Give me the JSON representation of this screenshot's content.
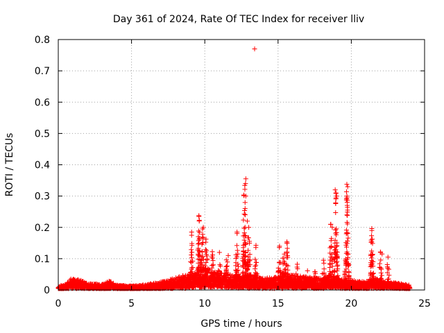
{
  "chart_data": {
    "type": "scatter",
    "title": "Day 361 of 2024, Rate Of TEC Index for receiver lliv",
    "xlabel": "GPS time / hours",
    "ylabel": "ROTI / TECUs",
    "xlim": [
      0,
      25
    ],
    "ylim": [
      0,
      0.8
    ],
    "xticks": [
      0,
      5,
      10,
      15,
      20,
      25
    ],
    "yticks": [
      0,
      0.1,
      0.2,
      0.3,
      0.4,
      0.5,
      0.6,
      0.7,
      0.8
    ],
    "xtick_labels": [
      "0",
      "5",
      "10",
      "15",
      "20",
      "25"
    ],
    "ytick_labels": [
      "0",
      "0.1",
      "0.2",
      "0.3",
      "0.4",
      "0.5",
      "0.6",
      "0.7",
      "0.8"
    ],
    "grid": true,
    "marker": "plus",
    "color": "#ff0000",
    "background": [
      [
        0.0,
        0.012
      ],
      [
        0.5,
        0.018
      ],
      [
        0.9,
        0.035
      ],
      [
        1.5,
        0.03
      ],
      [
        2.0,
        0.02
      ],
      [
        3.0,
        0.018
      ],
      [
        3.5,
        0.028
      ],
      [
        4.0,
        0.015
      ],
      [
        5.0,
        0.012
      ],
      [
        6.0,
        0.016
      ],
      [
        7.0,
        0.025
      ],
      [
        7.8,
        0.035
      ],
      [
        8.5,
        0.045
      ],
      [
        9.0,
        0.05
      ],
      [
        9.5,
        0.055
      ],
      [
        10.0,
        0.07
      ],
      [
        10.5,
        0.06
      ],
      [
        11.0,
        0.055
      ],
      [
        11.5,
        0.05
      ],
      [
        12.0,
        0.045
      ],
      [
        12.5,
        0.04
      ],
      [
        13.0,
        0.05
      ],
      [
        13.5,
        0.04
      ],
      [
        14.0,
        0.035
      ],
      [
        15.0,
        0.04
      ],
      [
        15.5,
        0.05
      ],
      [
        16.0,
        0.045
      ],
      [
        17.0,
        0.04
      ],
      [
        18.0,
        0.035
      ],
      [
        18.5,
        0.045
      ],
      [
        19.0,
        0.04
      ],
      [
        19.5,
        0.035
      ],
      [
        20.0,
        0.03
      ],
      [
        21.0,
        0.025
      ],
      [
        21.5,
        0.04
      ],
      [
        22.0,
        0.03
      ],
      [
        23.0,
        0.022
      ],
      [
        24.0,
        0.015
      ]
    ],
    "spikes": [
      {
        "x": 9.1,
        "peak": 0.18
      },
      {
        "x": 9.6,
        "peak": 0.23
      },
      {
        "x": 9.85,
        "peak": 0.2
      },
      {
        "x": 10.1,
        "peak": 0.16
      },
      {
        "x": 10.5,
        "peak": 0.13
      },
      {
        "x": 11.0,
        "peak": 0.12
      },
      {
        "x": 11.5,
        "peak": 0.11
      },
      {
        "x": 12.2,
        "peak": 0.18
      },
      {
        "x": 12.7,
        "peak": 0.35
      },
      {
        "x": 13.0,
        "peak": 0.2
      },
      {
        "x": 13.5,
        "peak": 0.14
      },
      {
        "x": 15.1,
        "peak": 0.14
      },
      {
        "x": 15.4,
        "peak": 0.15
      },
      {
        "x": 15.6,
        "peak": 0.15
      },
      {
        "x": 16.3,
        "peak": 0.08
      },
      {
        "x": 17.0,
        "peak": 0.06
      },
      {
        "x": 17.5,
        "peak": 0.07
      },
      {
        "x": 18.1,
        "peak": 0.09
      },
      {
        "x": 18.6,
        "peak": 0.21
      },
      {
        "x": 18.95,
        "peak": 0.31
      },
      {
        "x": 19.7,
        "peak": 0.33
      },
      {
        "x": 21.4,
        "peak": 0.19
      },
      {
        "x": 22.0,
        "peak": 0.12
      },
      {
        "x": 22.5,
        "peak": 0.1
      }
    ],
    "points": [
      [
        13.4,
        0.77
      ],
      [
        12.8,
        0.355
      ],
      [
        12.78,
        0.34
      ],
      [
        12.8,
        0.3
      ],
      [
        12.75,
        0.26
      ],
      [
        18.9,
        0.32
      ],
      [
        18.95,
        0.31
      ],
      [
        19.0,
        0.3
      ],
      [
        19.75,
        0.33
      ],
      [
        19.7,
        0.3
      ],
      [
        19.72,
        0.27
      ],
      [
        19.7,
        0.24
      ],
      [
        9.6,
        0.235
      ],
      [
        9.62,
        0.22
      ],
      [
        9.9,
        0.2
      ],
      [
        9.1,
        0.185
      ],
      [
        12.2,
        0.185
      ],
      [
        21.4,
        0.19
      ],
      [
        18.6,
        0.21
      ],
      [
        18.7,
        0.2
      ],
      [
        13.0,
        0.2
      ],
      [
        12.9,
        0.22
      ],
      [
        15.6,
        0.15
      ],
      [
        15.1,
        0.14
      ],
      [
        22.0,
        0.12
      ],
      [
        22.1,
        0.115
      ],
      [
        22.5,
        0.105
      ],
      [
        11.0,
        0.12
      ],
      [
        11.6,
        0.11
      ],
      [
        18.1,
        0.095
      ]
    ]
  }
}
